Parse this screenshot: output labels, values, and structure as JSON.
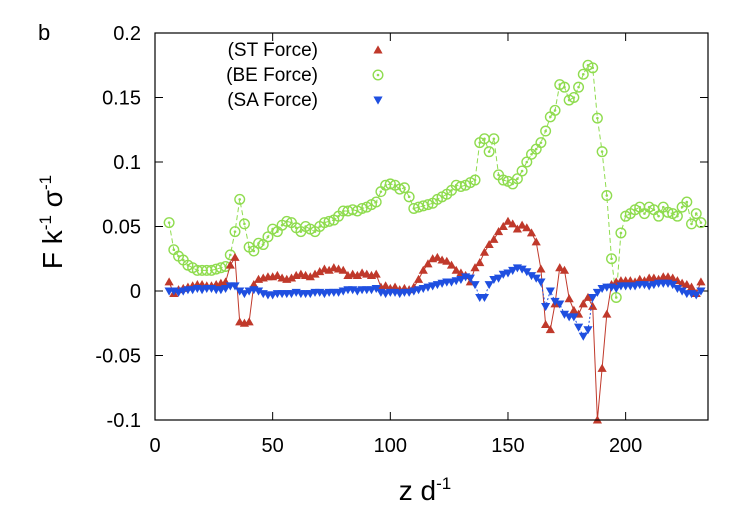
{
  "panel_label": "b",
  "chart_data": {
    "type": "line",
    "title": "",
    "xlabel": "z d",
    "xlabel_sup": "-1",
    "ylabel_parts": [
      "F k",
      "-1",
      " σ",
      "-1"
    ],
    "xlim": [
      0,
      235
    ],
    "ylim": [
      -0.1,
      0.2
    ],
    "xticks": [
      0,
      50,
      100,
      150,
      200
    ],
    "xtick_labels": [
      "0",
      "50",
      "100",
      "150",
      "200"
    ],
    "yticks": [
      -0.1,
      -0.05,
      0,
      0.05,
      0.1,
      0.15,
      0.2
    ],
    "ytick_labels": [
      "-0.1",
      "-0.05",
      "0",
      "0.05",
      "0.1",
      "0.15",
      "0.2"
    ],
    "legend_position": "top-left",
    "series": [
      {
        "name": "(ST Force)",
        "color": "#c0392b",
        "marker": "triangle-up",
        "line": "solid",
        "x": [
          6,
          8,
          10,
          12,
          14,
          16,
          18,
          20,
          22,
          24,
          26,
          28,
          30,
          32,
          34,
          36,
          38,
          40,
          42,
          44,
          46,
          48,
          50,
          52,
          54,
          56,
          58,
          60,
          62,
          64,
          66,
          68,
          70,
          72,
          74,
          76,
          78,
          80,
          82,
          84,
          86,
          88,
          90,
          92,
          94,
          96,
          98,
          100,
          102,
          104,
          106,
          108,
          110,
          112,
          114,
          116,
          118,
          120,
          122,
          124,
          126,
          128,
          130,
          132,
          134,
          136,
          138,
          140,
          142,
          144,
          146,
          148,
          150,
          152,
          154,
          156,
          158,
          160,
          162,
          164,
          166,
          168,
          170,
          172,
          174,
          176,
          178,
          180,
          182,
          184,
          186,
          188,
          190,
          192,
          194,
          196,
          198,
          200,
          202,
          204,
          206,
          208,
          210,
          212,
          214,
          216,
          218,
          220,
          222,
          224,
          226,
          228,
          230,
          232
        ],
        "y": [
          0.007,
          -0.002,
          0.001,
          0.002,
          0.003,
          0.004,
          0.005,
          0.005,
          0.004,
          0.004,
          0.005,
          0.006,
          0.007,
          0.02,
          0.026,
          -0.024,
          -0.025,
          -0.024,
          0.005,
          0.009,
          0.01,
          0.011,
          0.011,
          0.012,
          0.01,
          0.009,
          0.01,
          0.012,
          0.013,
          0.012,
          0.011,
          0.013,
          0.015,
          0.017,
          0.016,
          0.018,
          0.017,
          0.016,
          0.012,
          0.013,
          0.012,
          0.014,
          0.013,
          0.012,
          0.013,
          0.003,
          0.004,
          0.002,
          0.003,
          0.001,
          0.002,
          0.001,
          0.003,
          0.009,
          0.016,
          0.021,
          0.025,
          0.026,
          0.024,
          0.023,
          0.02,
          0.016,
          0.014,
          0.012,
          0.007,
          0.018,
          0.022,
          0.03,
          0.036,
          0.04,
          0.046,
          0.05,
          0.054,
          0.052,
          0.048,
          0.051,
          0.049,
          0.045,
          0.038,
          0.017,
          -0.026,
          -0.03,
          -0.01,
          0.018,
          0.016,
          -0.006,
          -0.015,
          -0.018,
          -0.01,
          -0.005,
          -0.012,
          -0.1,
          -0.06,
          -0.018,
          0.005,
          0.007,
          0.008,
          0.008,
          0.008,
          0.007,
          0.009,
          0.008,
          0.01,
          0.01,
          0.009,
          0.011,
          0.011,
          0.01,
          0.008,
          0.006,
          0.005,
          0.003,
          -0.002,
          0.007
        ]
      },
      {
        "name": "(BE Force)",
        "color": "#8fdc4f",
        "marker": "circle-open",
        "line": "dashed",
        "x": [
          6,
          8,
          10,
          12,
          14,
          16,
          18,
          20,
          22,
          24,
          26,
          28,
          30,
          32,
          34,
          36,
          38,
          40,
          42,
          44,
          46,
          48,
          50,
          52,
          54,
          56,
          58,
          60,
          62,
          64,
          66,
          68,
          70,
          72,
          74,
          76,
          78,
          80,
          82,
          84,
          86,
          88,
          90,
          92,
          94,
          96,
          98,
          100,
          102,
          104,
          106,
          108,
          110,
          112,
          114,
          116,
          118,
          120,
          122,
          124,
          126,
          128,
          130,
          132,
          134,
          136,
          138,
          140,
          142,
          144,
          146,
          148,
          150,
          152,
          154,
          156,
          158,
          160,
          162,
          164,
          166,
          168,
          170,
          172,
          174,
          176,
          178,
          180,
          182,
          184,
          186,
          188,
          190,
          192,
          194,
          196,
          198,
          200,
          202,
          204,
          206,
          208,
          210,
          212,
          214,
          216,
          218,
          220,
          222,
          224,
          226,
          228,
          230,
          232
        ],
        "y": [
          0.053,
          0.032,
          0.027,
          0.024,
          0.02,
          0.018,
          0.016,
          0.016,
          0.016,
          0.016,
          0.017,
          0.018,
          0.019,
          0.028,
          0.046,
          0.071,
          0.052,
          0.034,
          0.031,
          0.037,
          0.036,
          0.042,
          0.048,
          0.046,
          0.051,
          0.054,
          0.053,
          0.049,
          0.046,
          0.05,
          0.048,
          0.046,
          0.05,
          0.053,
          0.054,
          0.055,
          0.058,
          0.062,
          0.062,
          0.063,
          0.062,
          0.064,
          0.065,
          0.067,
          0.069,
          0.077,
          0.082,
          0.083,
          0.082,
          0.079,
          0.08,
          0.073,
          0.064,
          0.065,
          0.066,
          0.067,
          0.068,
          0.071,
          0.073,
          0.075,
          0.078,
          0.082,
          0.081,
          0.082,
          0.084,
          0.086,
          0.115,
          0.118,
          0.108,
          0.118,
          0.09,
          0.086,
          0.085,
          0.083,
          0.087,
          0.093,
          0.1,
          0.106,
          0.11,
          0.115,
          0.124,
          0.135,
          0.14,
          0.16,
          0.158,
          0.148,
          0.15,
          0.158,
          0.168,
          0.175,
          0.173,
          0.134,
          0.108,
          0.074,
          0.025,
          -0.005,
          0.045,
          0.058,
          0.06,
          0.063,
          0.065,
          0.06,
          0.065,
          0.063,
          0.058,
          0.065,
          0.061,
          0.06,
          0.058,
          0.065,
          0.069,
          0.052,
          0.06,
          0.053
        ]
      },
      {
        "name": "(SA Force)",
        "color": "#1f4fe0",
        "marker": "triangle-down",
        "line": "dotted",
        "x": [
          6,
          8,
          10,
          12,
          14,
          16,
          18,
          20,
          22,
          24,
          26,
          28,
          30,
          32,
          34,
          36,
          38,
          40,
          42,
          44,
          46,
          48,
          50,
          52,
          54,
          56,
          58,
          60,
          62,
          64,
          66,
          68,
          70,
          72,
          74,
          76,
          78,
          80,
          82,
          84,
          86,
          88,
          90,
          92,
          94,
          96,
          98,
          100,
          102,
          104,
          106,
          108,
          110,
          112,
          114,
          116,
          118,
          120,
          122,
          124,
          126,
          128,
          130,
          132,
          134,
          136,
          138,
          140,
          142,
          144,
          146,
          148,
          150,
          152,
          154,
          156,
          158,
          160,
          162,
          164,
          166,
          168,
          170,
          172,
          174,
          176,
          178,
          180,
          182,
          184,
          186,
          188,
          190,
          192,
          194,
          196,
          198,
          200,
          202,
          204,
          206,
          208,
          210,
          212,
          214,
          216,
          218,
          220,
          222,
          224,
          226,
          228,
          230,
          232
        ],
        "y": [
          0.0,
          0.0,
          -0.001,
          0.0,
          0.001,
          0.001,
          0.002,
          0.001,
          0.002,
          0.002,
          0.001,
          0.001,
          0.002,
          0.004,
          0.004,
          0.0,
          -0.002,
          0.0,
          0.001,
          0.0,
          -0.002,
          -0.003,
          -0.003,
          -0.002,
          -0.002,
          -0.002,
          -0.002,
          -0.001,
          -0.002,
          -0.002,
          -0.002,
          -0.001,
          -0.001,
          -0.002,
          -0.001,
          -0.001,
          -0.001,
          0.0,
          0.001,
          0.001,
          0.0,
          0.001,
          0.001,
          0.001,
          0.002,
          -0.001,
          -0.002,
          -0.001,
          -0.001,
          -0.002,
          -0.001,
          -0.001,
          0.0,
          0.001,
          0.002,
          0.003,
          0.004,
          0.005,
          0.006,
          0.007,
          0.007,
          0.008,
          0.009,
          0.011,
          0.01,
          0.005,
          -0.005,
          -0.005,
          0.005,
          0.009,
          0.01,
          0.013,
          0.014,
          0.016,
          0.018,
          0.017,
          0.015,
          0.012,
          0.01,
          0.007,
          -0.012,
          0.0,
          -0.008,
          -0.01,
          -0.018,
          -0.02,
          -0.02,
          -0.028,
          -0.035,
          -0.03,
          -0.005,
          -0.001,
          0.002,
          0.003,
          0.003,
          0.002,
          0.004,
          0.004,
          0.004,
          0.004,
          0.005,
          0.005,
          0.004,
          0.005,
          0.006,
          0.006,
          0.006,
          0.005,
          0.002,
          0.0,
          -0.002,
          -0.002,
          -0.003,
          0.0
        ]
      }
    ]
  }
}
